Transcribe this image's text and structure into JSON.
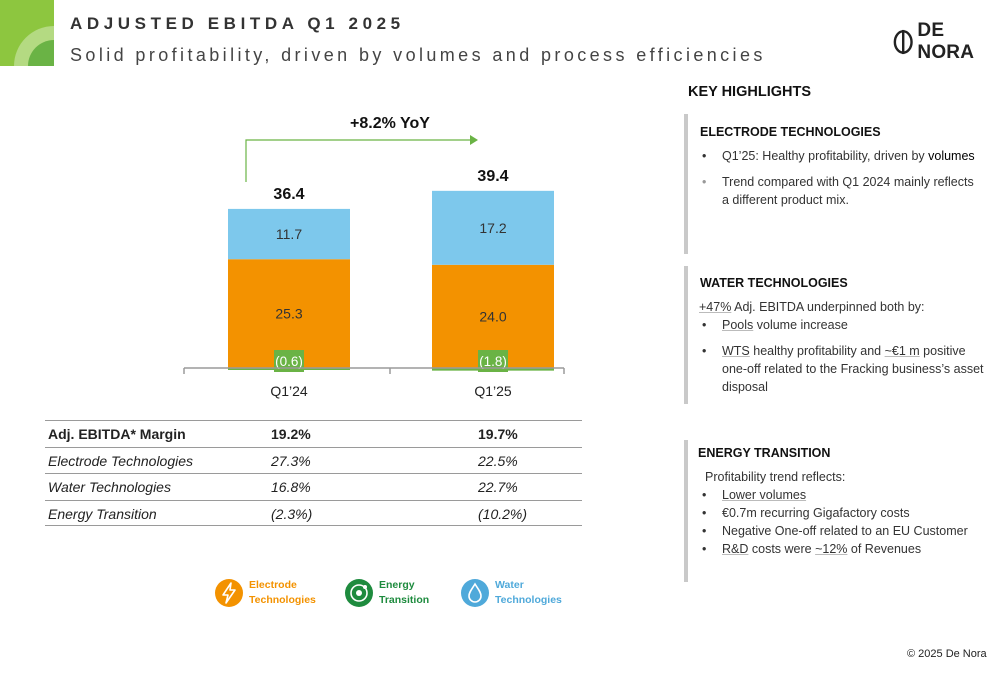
{
  "header": {
    "title": "ADJUSTED EBITDA Q1 2025",
    "subtitle": "Solid profitability, driven by volumes and process efficiencies"
  },
  "logo": {
    "text": "DE NORA"
  },
  "colors": {
    "electrode": "#F39200",
    "water": "#7DC8EC",
    "energy": "#6AB345",
    "energy_dark": "#1E8B3E",
    "axis": "#9a9a9a",
    "arrow": "#6AB345"
  },
  "chart_data": {
    "type": "bar",
    "stacked": true,
    "categories": [
      "Q1’24",
      "Q1’25"
    ],
    "totals": [
      36.4,
      39.4
    ],
    "series": [
      {
        "name": "Energy Transition",
        "values": [
          -0.6,
          -1.8
        ],
        "labels": [
          "(0.6)",
          "(1.8)"
        ]
      },
      {
        "name": "Electrode Technologies",
        "values": [
          25.3,
          24.0
        ],
        "labels": [
          "25.3",
          "24.0"
        ]
      },
      {
        "name": "Water Technologies",
        "values": [
          11.7,
          17.2
        ],
        "labels": [
          "11.7",
          "17.2"
        ]
      }
    ],
    "annotation": "+8.2% YoY"
  },
  "table": {
    "rows": [
      {
        "label": "Adj. EBITDA* Margin",
        "q1_24": "19.2%",
        "q1_25": "19.7%"
      },
      {
        "label": "Electrode Technologies",
        "q1_24": "27.3%",
        "q1_25": "22.5%"
      },
      {
        "label": "Water Technologies",
        "q1_24": "16.8%",
        "q1_25": "22.7%"
      },
      {
        "label": "Energy Transition",
        "q1_24": "(2.3%)",
        "q1_25": "(10.2%)"
      }
    ]
  },
  "legend": {
    "items": [
      {
        "line1": "Electrode",
        "line2": "Technologies",
        "icon": "lightning-icon"
      },
      {
        "line1": "Energy",
        "line2": "Transition",
        "icon": "atom-icon"
      },
      {
        "line1": "Water",
        "line2": "Technologies",
        "icon": "water-drop-icon"
      }
    ]
  },
  "highlights": {
    "title": "KEY HIGHLIGHTS",
    "electrode": {
      "title": "ELECTRODE TECHNOLOGIES",
      "b1_a": "Q1’25: Healthy profitability, driven by ",
      "b1_b": "volumes",
      "b2": "Trend compared with Q1 2024 mainly reflects a different product mix."
    },
    "water": {
      "title": "WATER TECHNOLOGIES",
      "intro_a": "+47%",
      "intro_b": " Adj. EBITDA underpinned both by:",
      "b1_a": "Pools",
      "b1_b": " volume increase",
      "b2_a": "WTS",
      "b2_b": " healthy profitability and ",
      "b2_c": "~€1 m",
      "b2_d": " positive one-off related to the Fracking business’s asset disposal"
    },
    "energy": {
      "title": "ENERGY TRANSITION",
      "intro": "Profitability trend reflects:",
      "b1": "Lower volumes",
      "b2": "€0.7m recurring Gigafactory costs",
      "b3": "Negative One-off related to an EU Customer",
      "b4_a": "R&D",
      "b4_b": " costs were ",
      "b4_c": "~12%",
      "b4_d": " of Revenues"
    }
  },
  "footer": {
    "copyright": "© 2025 De Nora"
  }
}
